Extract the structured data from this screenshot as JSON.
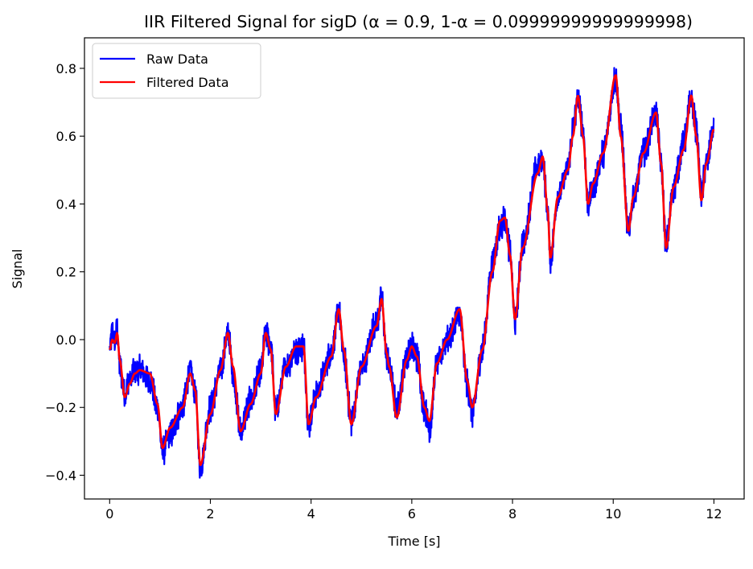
{
  "chart_data": {
    "type": "line",
    "title": "IIR Filtered Signal for sigD (α = 0.9, 1-α = 0.09999999999999998)",
    "xlabel": "Time [s]",
    "ylabel": "Signal",
    "xlim": [
      -0.5,
      12.6
    ],
    "ylim": [
      -0.47,
      0.89
    ],
    "xticks": [
      0,
      2,
      4,
      6,
      8,
      10,
      12
    ],
    "xtick_labels": [
      "0",
      "2",
      "4",
      "6",
      "8",
      "10",
      "12"
    ],
    "yticks": [
      -0.4,
      -0.2,
      0.0,
      0.2,
      0.4,
      0.6,
      0.8
    ],
    "ytick_labels": [
      "−0.4",
      "−0.2",
      "0.0",
      "0.2",
      "0.4",
      "0.6",
      "0.8"
    ],
    "grid": false,
    "legend_position": "top-left",
    "series": [
      {
        "name": "Raw Data",
        "color": "#0000ff",
        "style": "noisy",
        "noise_amplitude": 0.035,
        "x": [
          0,
          0.05,
          0.1,
          0.15,
          0.2,
          0.3,
          0.4,
          0.5,
          0.6,
          0.8,
          0.95,
          1.05,
          1.2,
          1.45,
          1.6,
          1.7,
          1.8,
          2.0,
          2.2,
          2.35,
          2.45,
          2.6,
          2.8,
          3.0,
          3.1,
          3.2,
          3.3,
          3.5,
          3.7,
          3.85,
          3.95,
          4.1,
          4.4,
          4.55,
          4.65,
          4.8,
          5.0,
          5.3,
          5.4,
          5.5,
          5.55,
          5.7,
          5.9,
          6.0,
          6.1,
          6.25,
          6.35,
          6.5,
          6.7,
          6.95,
          7.1,
          7.2,
          7.4,
          7.6,
          7.75,
          7.85,
          7.95,
          8.05,
          8.2,
          8.5,
          8.6,
          8.7,
          8.75,
          8.9,
          9.1,
          9.2,
          9.3,
          9.4,
          9.5,
          9.6,
          9.8,
          10.05,
          10.15,
          10.3,
          10.4,
          10.6,
          10.85,
          10.95,
          11.05,
          11.2,
          11.4,
          11.55,
          11.65,
          11.75,
          11.85,
          12.0
        ],
        "y": [
          -0.03,
          0.02,
          -0.01,
          0.03,
          -0.08,
          -0.16,
          -0.12,
          -0.09,
          -0.09,
          -0.12,
          -0.2,
          -0.33,
          -0.28,
          -0.2,
          -0.09,
          -0.16,
          -0.38,
          -0.2,
          -0.09,
          0.02,
          -0.1,
          -0.27,
          -0.18,
          -0.1,
          0.02,
          -0.02,
          -0.21,
          -0.08,
          -0.03,
          -0.02,
          -0.25,
          -0.16,
          -0.04,
          0.08,
          -0.05,
          -0.24,
          -0.08,
          0.05,
          0.12,
          -0.05,
          -0.08,
          -0.2,
          -0.05,
          -0.02,
          -0.05,
          -0.2,
          -0.26,
          -0.07,
          0.0,
          0.07,
          -0.13,
          -0.22,
          -0.03,
          0.22,
          0.33,
          0.36,
          0.26,
          0.05,
          0.28,
          0.51,
          0.53,
          0.38,
          0.24,
          0.42,
          0.5,
          0.62,
          0.71,
          0.62,
          0.4,
          0.45,
          0.55,
          0.77,
          0.62,
          0.32,
          0.42,
          0.55,
          0.67,
          0.52,
          0.28,
          0.45,
          0.58,
          0.71,
          0.62,
          0.43,
          0.52,
          0.62
        ]
      },
      {
        "name": "Filtered Data",
        "color": "#ff0000",
        "style": "smooth",
        "x": [
          0,
          0.05,
          0.1,
          0.15,
          0.2,
          0.3,
          0.4,
          0.5,
          0.6,
          0.8,
          0.95,
          1.05,
          1.2,
          1.45,
          1.6,
          1.7,
          1.8,
          2.0,
          2.2,
          2.35,
          2.45,
          2.6,
          2.8,
          3.0,
          3.1,
          3.2,
          3.3,
          3.5,
          3.7,
          3.85,
          3.95,
          4.1,
          4.4,
          4.55,
          4.65,
          4.8,
          5.0,
          5.3,
          5.4,
          5.5,
          5.55,
          5.7,
          5.9,
          6.0,
          6.1,
          6.25,
          6.35,
          6.5,
          6.7,
          6.95,
          7.1,
          7.2,
          7.4,
          7.6,
          7.75,
          7.85,
          7.95,
          8.05,
          8.2,
          8.5,
          8.6,
          8.7,
          8.75,
          8.9,
          9.1,
          9.2,
          9.3,
          9.4,
          9.5,
          9.6,
          9.8,
          10.05,
          10.15,
          10.3,
          10.4,
          10.6,
          10.85,
          10.95,
          11.05,
          11.2,
          11.4,
          11.55,
          11.65,
          11.75,
          11.85,
          12.0
        ],
        "y": [
          -0.03,
          0.0,
          -0.01,
          0.02,
          -0.06,
          -0.17,
          -0.13,
          -0.1,
          -0.09,
          -0.1,
          -0.19,
          -0.32,
          -0.26,
          -0.2,
          -0.1,
          -0.15,
          -0.37,
          -0.22,
          -0.09,
          0.02,
          -0.08,
          -0.27,
          -0.19,
          -0.1,
          0.02,
          -0.03,
          -0.22,
          -0.08,
          -0.02,
          -0.02,
          -0.25,
          -0.17,
          -0.05,
          0.09,
          -0.03,
          -0.25,
          -0.08,
          0.04,
          0.12,
          -0.04,
          -0.08,
          -0.23,
          -0.06,
          -0.02,
          -0.05,
          -0.2,
          -0.24,
          -0.07,
          0.0,
          0.09,
          -0.12,
          -0.2,
          -0.03,
          0.2,
          0.35,
          0.36,
          0.25,
          0.06,
          0.27,
          0.49,
          0.54,
          0.38,
          0.24,
          0.42,
          0.5,
          0.6,
          0.72,
          0.6,
          0.4,
          0.46,
          0.55,
          0.78,
          0.6,
          0.32,
          0.42,
          0.55,
          0.67,
          0.52,
          0.27,
          0.45,
          0.56,
          0.72,
          0.6,
          0.41,
          0.52,
          0.62
        ]
      }
    ]
  }
}
